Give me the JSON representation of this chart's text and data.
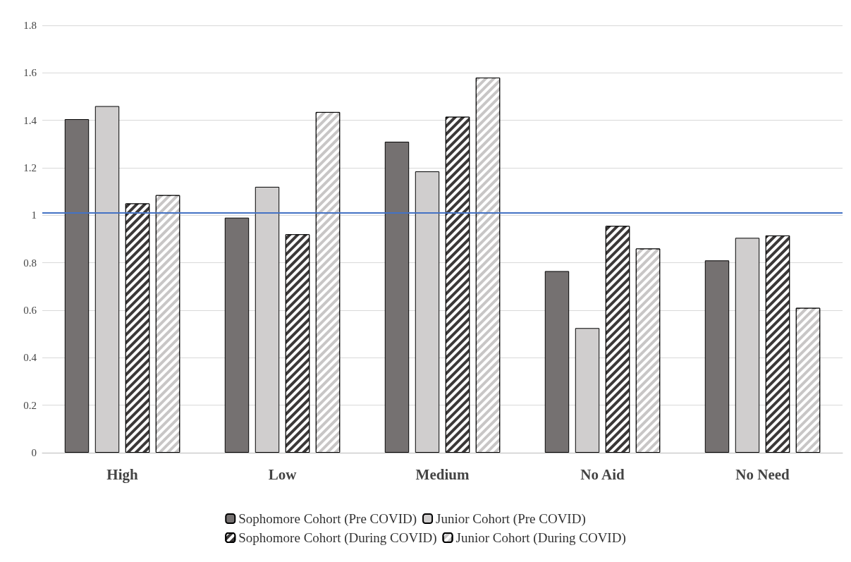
{
  "chart_data": {
    "type": "bar",
    "categories": [
      "High",
      "Low",
      "Medium",
      "No Aid",
      "No Need"
    ],
    "series": [
      {
        "name": "Sophomore Cohort (Pre COVID)",
        "color": "#757171",
        "values": [
          1.405,
          0.99,
          1.31,
          0.765,
          0.81
        ]
      },
      {
        "name": "Junior Cohort (Pre COVID)",
        "color": "#d0cece",
        "values": [
          1.46,
          1.12,
          1.185,
          0.525,
          0.905
        ]
      },
      {
        "name": "Sophomore Cohort (During COVID)",
        "color": "#3b3838",
        "values": [
          1.05,
          0.92,
          1.415,
          0.955,
          0.915
        ]
      },
      {
        "name": "Junior Cohort (During COVID)",
        "color": "#c8c6c6",
        "values": [
          1.085,
          1.435,
          1.58,
          0.86,
          0.61
        ]
      }
    ],
    "ylim": [
      0,
      1.8
    ],
    "yticks": [
      0,
      0.2,
      0.4,
      0.6,
      0.8,
      1,
      1.2,
      1.4,
      1.6,
      1.8
    ],
    "grid": "y",
    "legend": "bottom",
    "ref_lines": [
      {
        "axis": "y",
        "value": 1.01,
        "color": "#4472c4"
      }
    ]
  }
}
